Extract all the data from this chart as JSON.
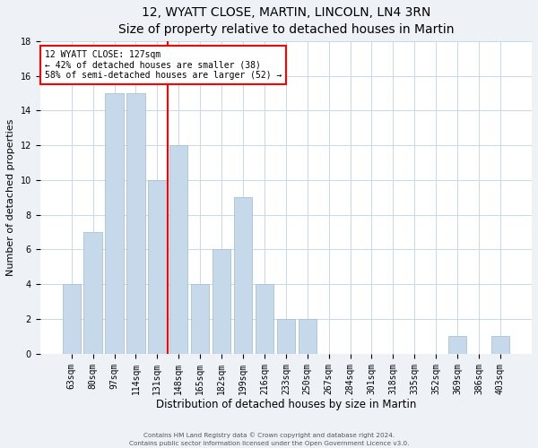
{
  "title": "12, WYATT CLOSE, MARTIN, LINCOLN, LN4 3RN",
  "subtitle": "Size of property relative to detached houses in Martin",
  "xlabel": "Distribution of detached houses by size in Martin",
  "ylabel": "Number of detached properties",
  "categories": [
    "63sqm",
    "80sqm",
    "97sqm",
    "114sqm",
    "131sqm",
    "148sqm",
    "165sqm",
    "182sqm",
    "199sqm",
    "216sqm",
    "233sqm",
    "250sqm",
    "267sqm",
    "284sqm",
    "301sqm",
    "318sqm",
    "335sqm",
    "352sqm",
    "369sqm",
    "386sqm",
    "403sqm"
  ],
  "values": [
    4,
    7,
    15,
    15,
    10,
    12,
    4,
    6,
    9,
    4,
    2,
    2,
    0,
    0,
    0,
    0,
    0,
    0,
    1,
    0,
    1
  ],
  "bar_color": "#c6d9ea",
  "bar_edge_color": "#a8c0d6",
  "property_line_x": 4.5,
  "property_label": "12 WYATT CLOSE: 127sqm",
  "annotation_line1": "← 42% of detached houses are smaller (38)",
  "annotation_line2": "58% of semi-detached houses are larger (52) →",
  "annotation_box_color": "white",
  "annotation_box_edge_color": "red",
  "property_line_color": "red",
  "ylim": [
    0,
    18
  ],
  "yticks": [
    0,
    2,
    4,
    6,
    8,
    10,
    12,
    14,
    16,
    18
  ],
  "title_fontsize": 10,
  "xlabel_fontsize": 8.5,
  "ylabel_fontsize": 8,
  "tick_fontsize": 7,
  "annot_fontsize": 7,
  "footer_line1": "Contains HM Land Registry data © Crown copyright and database right 2024.",
  "footer_line2": "Contains public sector information licensed under the Open Government Licence v3.0.",
  "background_color": "#eef2f7",
  "plot_background_color": "white",
  "grid_color": "#c8d8e8"
}
